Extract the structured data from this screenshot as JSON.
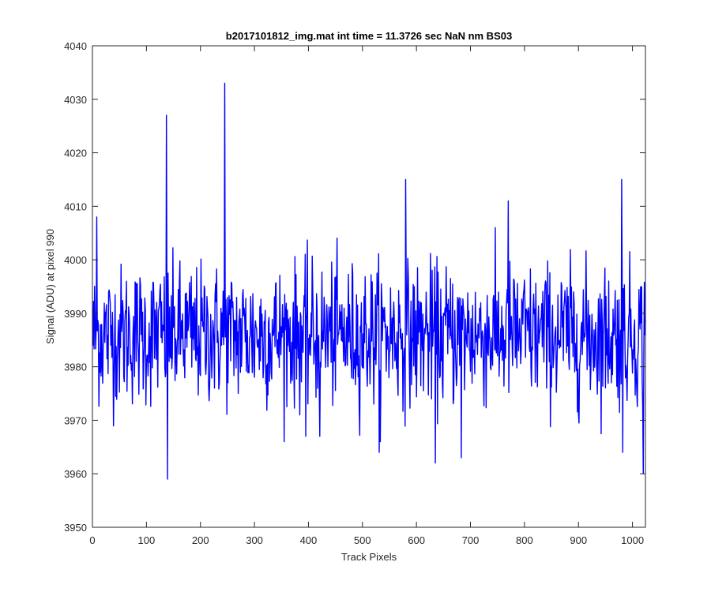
{
  "chart_data": {
    "type": "line",
    "title": "b2017101812_img.mat int time = 11.3726 sec  NaN nm BS03",
    "xlabel": "Track Pixels",
    "ylabel": "Signal (ADU) at pixel 990",
    "xlim": [
      0,
      1024
    ],
    "ylim": [
      3950,
      4040
    ],
    "xticks": [
      0,
      100,
      200,
      300,
      400,
      500,
      600,
      700,
      800,
      900,
      1000
    ],
    "yticks": [
      3950,
      3960,
      3970,
      3980,
      3990,
      4000,
      4010,
      4020,
      4030,
      4040
    ],
    "grid": false,
    "series": [
      {
        "color": "#0000ff",
        "baseline": 3986,
        "x_start": 1,
        "x_end": 1024,
        "notable_points": [
          {
            "x": 8,
            "y": 4008
          },
          {
            "x": 137,
            "y": 4027
          },
          {
            "x": 139,
            "y": 3959
          },
          {
            "x": 245,
            "y": 4033
          },
          {
            "x": 395,
            "y": 3967
          },
          {
            "x": 421,
            "y": 3967
          },
          {
            "x": 531,
            "y": 3964
          },
          {
            "x": 580,
            "y": 4015
          },
          {
            "x": 635,
            "y": 3962
          },
          {
            "x": 683,
            "y": 3963
          },
          {
            "x": 770,
            "y": 4011
          },
          {
            "x": 980,
            "y": 4015
          },
          {
            "x": 982,
            "y": 3964
          },
          {
            "x": 1020,
            "y": 3960
          }
        ]
      }
    ]
  }
}
